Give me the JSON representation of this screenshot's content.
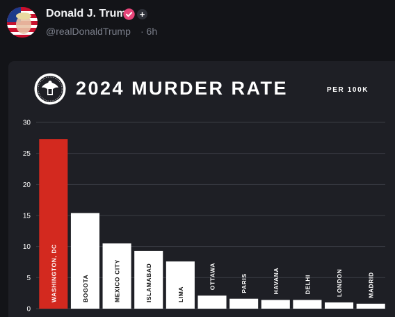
{
  "post": {
    "display_name": "Donald J. Trump",
    "handle": "@realDonaldTrump",
    "separator_time": "· 6h",
    "follow_label": "+",
    "icons": {
      "avatar": "avatar-flag-portrait",
      "verified": "verified-badge-icon",
      "follow": "plus-icon"
    }
  },
  "colors": {
    "background": "#131418",
    "card": "#1e1f25",
    "highlight_bar": "#d3291f",
    "bar": "#ffffff",
    "grid": "#3a3c44",
    "verified": "#e8457a"
  },
  "chart_data": {
    "type": "bar",
    "title": "2024 MURDER RATE",
    "subtitle": "PER 100K",
    "xlabel": "",
    "ylabel": "",
    "ylim": [
      0,
      30
    ],
    "yticks": [
      0,
      5,
      10,
      15,
      20,
      25,
      30
    ],
    "grid": true,
    "categories": [
      "WASHINGTON, DC",
      "BOGOTA",
      "MEXICO CITY",
      "ISLAMABAD",
      "LIMA",
      "OTTAWA",
      "PARIS",
      "HAVANA",
      "DELHI",
      "LONDON",
      "MADRID"
    ],
    "values": [
      27.3,
      15.4,
      10.5,
      9.3,
      7.6,
      2.1,
      1.6,
      1.4,
      1.4,
      1.0,
      0.8
    ],
    "highlight_index": 0
  }
}
